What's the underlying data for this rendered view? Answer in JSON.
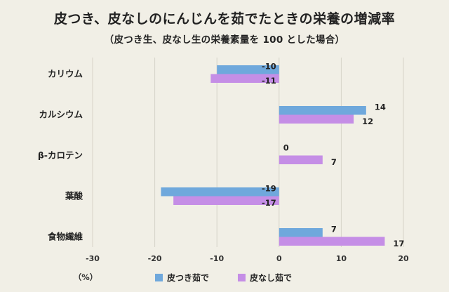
{
  "title": "皮つき、皮なしのにんじんを茹でたときの栄養の増減率",
  "subtitle": "（皮つき生、皮なし生の栄養素量を 100 とした場合）",
  "chart_data": {
    "type": "bar",
    "orientation": "horizontal",
    "categories": [
      "カリウム",
      "カルシウム",
      "β-カロテン",
      "葉酸",
      "食物繊維"
    ],
    "series": [
      {
        "name": "皮つき茹で",
        "color": "#6fa8dc",
        "values": [
          -10,
          14,
          0,
          -19,
          7
        ],
        "labels": [
          "-10",
          "14",
          "0",
          "-19",
          "7"
        ]
      },
      {
        "name": "皮なし茹で",
        "color": "#c58ee6",
        "values": [
          -11,
          12,
          7,
          -17,
          17
        ],
        "labels": [
          "-11",
          "12",
          "7",
          "-17",
          "17"
        ]
      }
    ],
    "xlim": [
      -30,
      20
    ],
    "xticks": [
      "-30",
      "-20",
      "-10",
      "0",
      "10",
      "20"
    ],
    "xunit": "（%）",
    "grid": "vertical",
    "legend": "bottom"
  }
}
